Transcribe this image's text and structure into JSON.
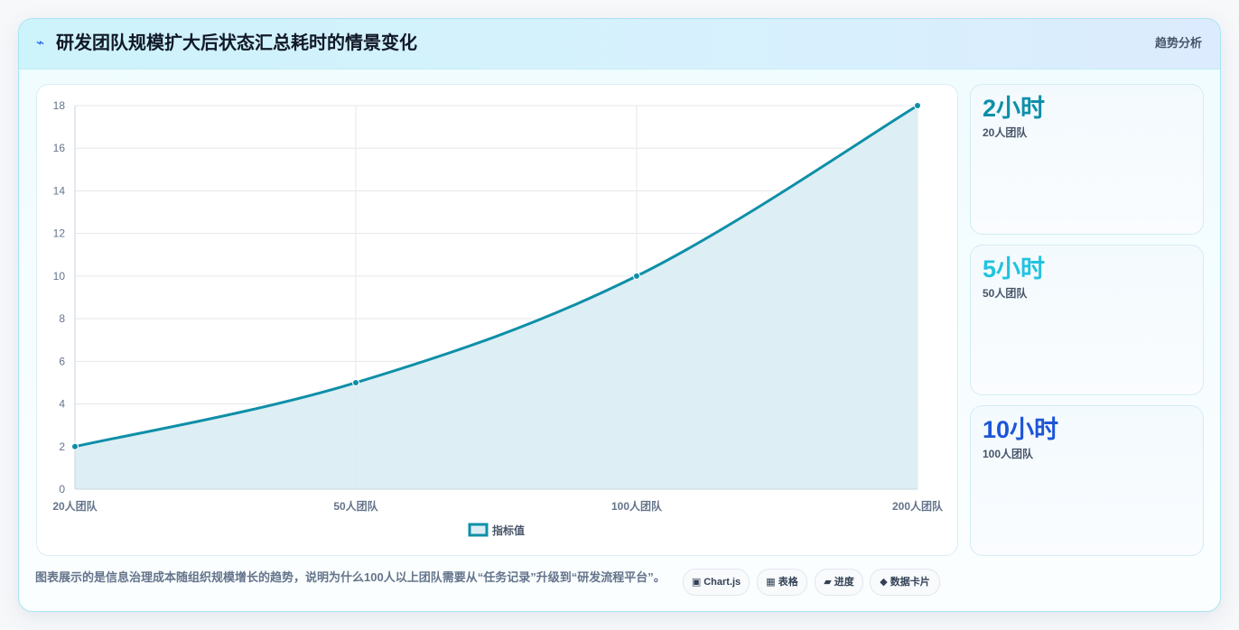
{
  "header": {
    "icon": "lightning-icon",
    "title": "研发团队规模扩大后状态汇总耗时的情景变化",
    "tag": "趋势分析"
  },
  "chart_data": {
    "type": "area",
    "categories": [
      "20人团队",
      "50人团队",
      "100人团队",
      "200人团队"
    ],
    "series": [
      {
        "name": "指标值",
        "values": [
          2,
          5,
          10,
          18
        ]
      }
    ],
    "ylim": [
      0,
      18
    ],
    "yticks": [
      "0",
      "2",
      "4",
      "6",
      "8",
      "10",
      "12",
      "14",
      "16",
      "18"
    ],
    "grid": true,
    "legend_position": "bottom",
    "colors": {
      "line": "#0e8fa8",
      "fill": "#dbedf3"
    }
  },
  "stats": [
    {
      "value_num": "2",
      "value_unit": "小时",
      "label": "20人团队",
      "color": "#0e8fa8"
    },
    {
      "value_num": "5",
      "value_unit": "小时",
      "label": "50人团队",
      "color": "#22c3df"
    },
    {
      "value_num": "10",
      "value_unit": "小时",
      "label": "100人团队",
      "color": "#1d55d6"
    }
  ],
  "footer": {
    "description": "图表展示的是信息治理成本随组织规模增长的趋势，说明为什么100人以上团队需要从“任务记录”升级到“研发流程平台”。",
    "pills": [
      {
        "icon": "square-icon",
        "glyph": "▣",
        "label": "Chart.js"
      },
      {
        "icon": "grid-icon",
        "glyph": "▦",
        "label": "表格"
      },
      {
        "icon": "progress-icon",
        "glyph": "▰",
        "label": "进度"
      },
      {
        "icon": "diamond-icon",
        "glyph": "◆",
        "label": "数据卡片"
      }
    ]
  }
}
